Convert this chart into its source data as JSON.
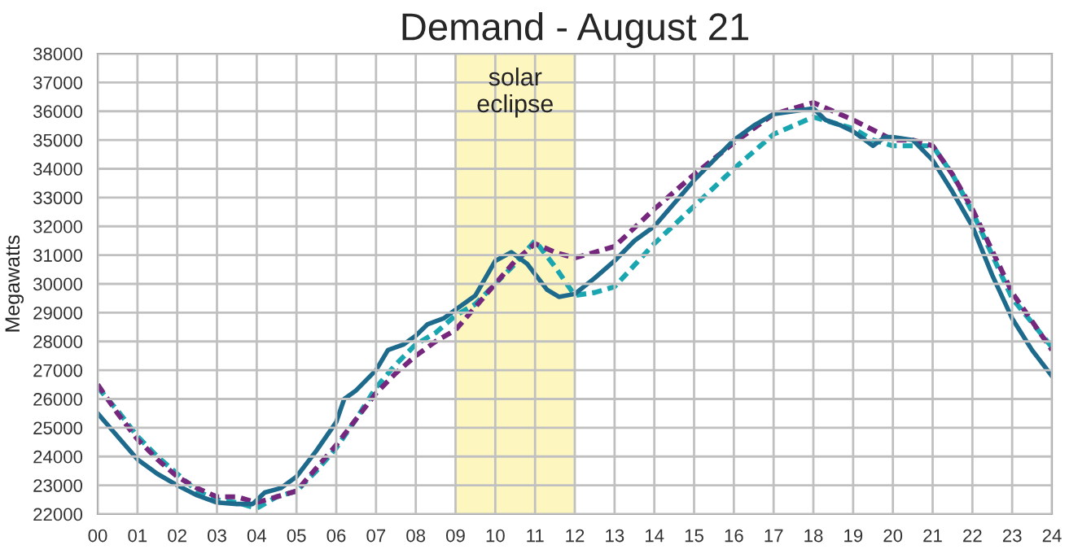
{
  "chart_data": {
    "type": "line",
    "title": "Demand - August 21",
    "ylabel": "Megawatts",
    "xlim": [
      0,
      24
    ],
    "xticks": [
      {
        "value": 0,
        "label": "00"
      },
      {
        "value": 1,
        "label": "01"
      },
      {
        "value": 2,
        "label": "02"
      },
      {
        "value": 3,
        "label": "03"
      },
      {
        "value": 4,
        "label": "04"
      },
      {
        "value": 5,
        "label": "05"
      },
      {
        "value": 6,
        "label": "06"
      },
      {
        "value": 7,
        "label": "07"
      },
      {
        "value": 8,
        "label": "08"
      },
      {
        "value": 9,
        "label": "09"
      },
      10,
      11,
      12,
      13,
      14,
      15,
      16,
      17,
      18,
      19,
      20,
      21,
      22,
      23,
      24
    ],
    "ylim": [
      22000,
      38000
    ],
    "yticks": [
      22000,
      23000,
      24000,
      25000,
      26000,
      27000,
      28000,
      29000,
      30000,
      31000,
      32000,
      33000,
      34000,
      35000,
      36000,
      37000,
      38000
    ],
    "grid": true,
    "bands": [
      {
        "axis": "x",
        "from": 9,
        "to": 12,
        "label": "solar\neclipse",
        "color": "#fdf6bf"
      }
    ],
    "series": [
      {
        "color": "#1d6a8c",
        "line_style": "solid",
        "x": [
          0,
          0.5,
          1,
          1.5,
          2,
          2.5,
          3,
          3.5,
          3.9,
          4.2,
          4.6,
          5,
          5.5,
          6,
          6.2,
          6.5,
          7,
          7.3,
          7.7,
          8,
          8.3,
          8.7,
          9,
          9.5,
          10,
          10.4,
          10.8,
          11.3,
          11.6,
          12,
          12.5,
          13,
          13.5,
          14,
          14.5,
          15,
          15.5,
          16,
          16.5,
          17,
          17.5,
          18,
          18.3,
          18.7,
          19,
          19.5,
          19.8,
          20,
          20.5,
          21,
          21.5,
          22,
          22.5,
          23,
          23.5,
          24
        ],
        "values": [
          25500,
          24700,
          23900,
          23400,
          23000,
          22650,
          22400,
          22350,
          22350,
          22750,
          22900,
          23300,
          24200,
          25200,
          26000,
          26300,
          27000,
          27700,
          27900,
          28200,
          28600,
          28800,
          29100,
          29600,
          30800,
          31100,
          30700,
          29800,
          29550,
          29650,
          30200,
          30800,
          31500,
          32000,
          32800,
          33600,
          34300,
          35000,
          35500,
          35900,
          36000,
          36100,
          35700,
          35500,
          35300,
          34800,
          35100,
          35100,
          35000,
          34300,
          33200,
          32000,
          30300,
          28800,
          27700,
          26800
        ]
      },
      {
        "color": "#74277c",
        "line_style": "dashed",
        "x": [
          0,
          0.5,
          1,
          1.5,
          2,
          2.5,
          3,
          3.5,
          4,
          4.5,
          5,
          5.5,
          6,
          6.5,
          7,
          7.5,
          8,
          8.5,
          9,
          9.5,
          10,
          10.5,
          11,
          11.5,
          12,
          12.5,
          13,
          14,
          15,
          16,
          17,
          18,
          19,
          20,
          20.5,
          21,
          21.5,
          22,
          23,
          24
        ],
        "values": [
          26500,
          25500,
          24600,
          23900,
          23300,
          22900,
          22600,
          22600,
          22400,
          22600,
          22800,
          23600,
          24400,
          25300,
          26200,
          26900,
          27500,
          28000,
          28400,
          29200,
          30000,
          30800,
          31400,
          31100,
          30900,
          31100,
          31300,
          32600,
          33800,
          34900,
          35900,
          36300,
          35700,
          35000,
          35000,
          34800,
          33800,
          32600,
          29700,
          27700
        ]
      },
      {
        "color": "#1aa6b0",
        "line_style": "dashed",
        "x": [
          0,
          0.5,
          1,
          1.5,
          2,
          2.5,
          3,
          3.5,
          4,
          4.5,
          5,
          5.5,
          6,
          6.5,
          7,
          7.5,
          8,
          8.5,
          9,
          9.5,
          10,
          10.5,
          11,
          11.5,
          12,
          12.5,
          13,
          14,
          15,
          16,
          17,
          18,
          19,
          19.5,
          20,
          20.5,
          21,
          21.5,
          22,
          23,
          24
        ],
        "values": [
          26400,
          25600,
          24700,
          24000,
          23400,
          22800,
          22500,
          22400,
          22200,
          22600,
          22800,
          23500,
          24300,
          25300,
          26400,
          27200,
          27900,
          28300,
          28900,
          29300,
          30000,
          30700,
          31500,
          30600,
          29600,
          29700,
          29900,
          31400,
          32700,
          34000,
          35200,
          35800,
          35400,
          35000,
          34800,
          34800,
          34800,
          33800,
          32500,
          29500,
          27800
        ]
      }
    ]
  }
}
